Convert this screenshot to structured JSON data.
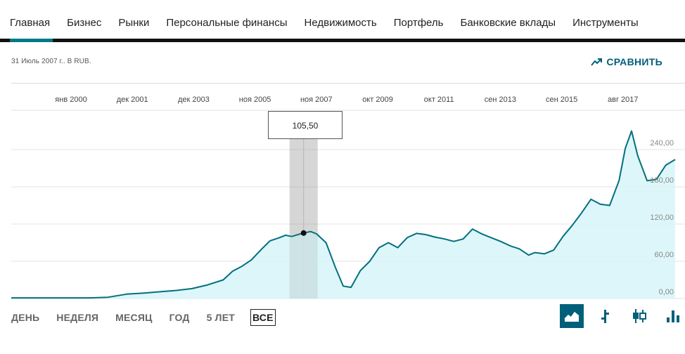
{
  "nav": {
    "items": [
      {
        "label": "Главная",
        "active": true
      },
      {
        "label": "Бизнес"
      },
      {
        "label": "Рынки"
      },
      {
        "label": "Персональные финансы"
      },
      {
        "label": "Недвижимость"
      },
      {
        "label": "Портфель"
      },
      {
        "label": "Банковские вклады"
      },
      {
        "label": "Инструменты"
      }
    ]
  },
  "header": {
    "date_label": "31 Июль 2007 г.. В RUB.",
    "compare_label": "СРАВНИТЬ"
  },
  "tooltip": {
    "value": "105,50"
  },
  "ranges": {
    "items": [
      {
        "label": "ДЕНЬ"
      },
      {
        "label": "НЕДЕЛЯ"
      },
      {
        "label": "МЕСЯЦ"
      },
      {
        "label": "ГОД"
      },
      {
        "label": "5 ЛЕТ"
      },
      {
        "label": "ВСЕ",
        "active": true
      }
    ]
  },
  "chart_types": [
    {
      "icon": "area-chart-icon",
      "active": true
    },
    {
      "icon": "line-chart-icon"
    },
    {
      "icon": "candlestick-chart-icon"
    },
    {
      "icon": "bar-chart-icon"
    }
  ],
  "colors": {
    "accent": "#00607a",
    "line": "#00707f",
    "fill": "#d7f4f8",
    "nav_active": "#007a89"
  },
  "chart_data": {
    "type": "area",
    "x_tick_labels": [
      "янв 2000",
      "дек 2001",
      "дек 2003",
      "ноя 2005",
      "ноя 2007",
      "окт 2009",
      "окт 2011",
      "сен 2013",
      "сен 2015",
      "авг 2017"
    ],
    "y_tick_labels": [
      "240,00",
      "180,00",
      "120,00",
      "60,00",
      "0,00"
    ],
    "y_ticks": [
      240,
      180,
      120,
      60,
      0
    ],
    "ylim": [
      0,
      270
    ],
    "x_range": [
      1998.2,
      2019.5
    ],
    "grid": true,
    "highlight": {
      "x": 2007.58,
      "y": 105.5
    },
    "series": [
      {
        "x": [
          1998.2,
          1999.0,
          2000.0,
          2000.7,
          2001.3,
          2001.9,
          2002.5,
          2003.0,
          2003.5,
          2004.0,
          2004.5,
          2005.0,
          2005.3,
          2005.6,
          2005.9,
          2006.2,
          2006.5,
          2006.8,
          2007.0,
          2007.2,
          2007.4,
          2007.58,
          2007.8,
          2008.0,
          2008.3,
          2008.6,
          2008.85,
          2009.1,
          2009.4,
          2009.7,
          2010.0,
          2010.3,
          2010.6,
          2010.9,
          2011.2,
          2011.5,
          2011.8,
          2012.1,
          2012.4,
          2012.7,
          2013.0,
          2013.3,
          2013.6,
          2013.9,
          2014.2,
          2014.5,
          2014.8,
          2015.0,
          2015.3,
          2015.6,
          2015.9,
          2016.2,
          2016.5,
          2016.8,
          2017.1,
          2017.4,
          2017.7,
          2017.9,
          2018.1,
          2018.3,
          2018.6,
          2018.9,
          2019.2,
          2019.5
        ],
        "values": [
          1,
          1,
          1,
          1,
          2,
          7,
          9,
          11,
          13,
          16,
          22,
          30,
          44,
          52,
          62,
          78,
          93,
          98,
          102,
          100,
          103,
          105.5,
          108,
          104,
          90,
          50,
          20,
          18,
          45,
          60,
          82,
          90,
          82,
          98,
          105,
          103,
          99,
          96,
          92,
          96,
          112,
          104,
          98,
          92,
          85,
          80,
          70,
          74,
          72,
          78,
          100,
          118,
          138,
          160,
          152,
          150,
          190,
          242,
          270,
          230,
          190,
          192,
          215,
          224
        ]
      }
    ]
  }
}
